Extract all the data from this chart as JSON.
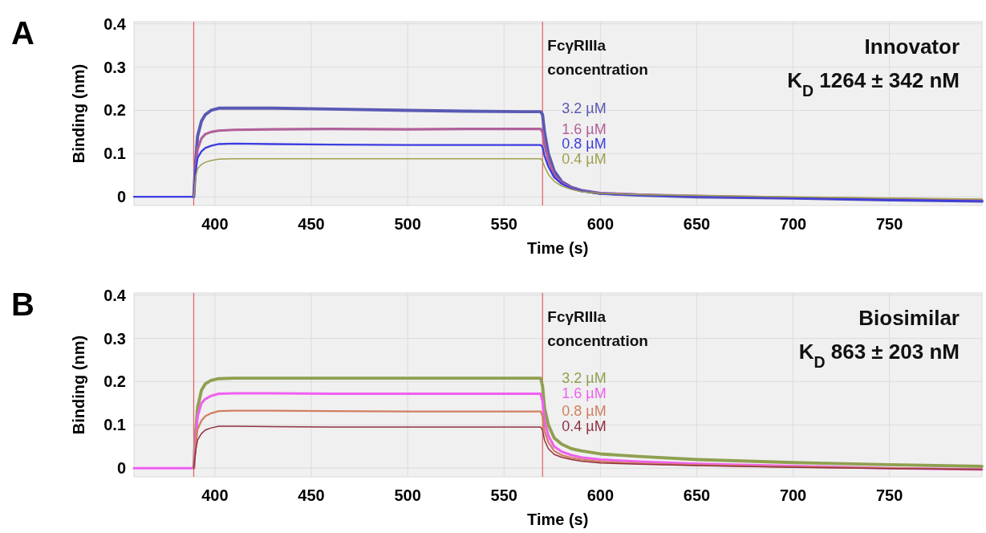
{
  "chart_data": [
    {
      "type": "line",
      "annotations": [
        "A"
      ],
      "title": "Innovator",
      "subtitle": "K$_{D}$ 1264 ± 342 nM",
      "legend_title": "FcγRIIIa concentration",
      "xlabel": "Time (s)",
      "ylabel": "Binding (nm)",
      "x": [
        358,
        370,
        385,
        389,
        390,
        391,
        393,
        395,
        398,
        402,
        410,
        430,
        460,
        500,
        530,
        560,
        569,
        570,
        571,
        573,
        576,
        580,
        585,
        590,
        600,
        620,
        650,
        700,
        750,
        798
      ],
      "series": [
        {
          "name": "3.2 µM",
          "color": "#5a5ab4",
          "values": [
            null,
            null,
            null,
            0,
            0.08,
            0.14,
            0.175,
            0.19,
            0.2,
            0.205,
            0.205,
            0.205,
            0.203,
            0.2,
            0.198,
            0.197,
            0.197,
            0.19,
            0.15,
            0.1,
            0.06,
            0.035,
            0.022,
            0.015,
            0.008,
            0.004,
            0.0,
            -0.003,
            -0.007,
            -0.01
          ]
        },
        {
          "name": "1.6 µM",
          "color": "#b0609a",
          "values": [
            null,
            null,
            null,
            0,
            0.07,
            0.11,
            0.135,
            0.145,
            0.15,
            0.153,
            0.155,
            0.156,
            0.157,
            0.156,
            0.157,
            0.157,
            0.157,
            0.15,
            0.12,
            0.085,
            0.05,
            0.032,
            0.02,
            0.014,
            0.008,
            0.005,
            0.002,
            -0.002,
            -0.005,
            -0.008
          ]
        },
        {
          "name": "0.8 µM",
          "color": "#3c3ce0",
          "values": [
            0,
            0,
            0,
            0,
            0.06,
            0.09,
            0.105,
            0.113,
            0.118,
            0.122,
            0.123,
            0.122,
            0.121,
            0.12,
            0.12,
            0.12,
            0.12,
            0.115,
            0.095,
            0.07,
            0.045,
            0.03,
            0.019,
            0.013,
            0.007,
            0.004,
            0.001,
            -0.003,
            -0.007,
            -0.01
          ]
        },
        {
          "name": "0.4 µM",
          "color": "#a0a050",
          "values": [
            null,
            null,
            null,
            0,
            0.045,
            0.065,
            0.075,
            0.08,
            0.084,
            0.087,
            0.088,
            0.088,
            0.088,
            0.088,
            0.088,
            0.088,
            0.088,
            0.083,
            0.07,
            0.052,
            0.036,
            0.025,
            0.017,
            0.012,
            0.008,
            0.005,
            0.003,
            0.0,
            -0.003,
            -0.005
          ]
        }
      ],
      "xlim": [
        358,
        798
      ],
      "xticks": [
        400,
        450,
        500,
        550,
        600,
        650,
        700,
        750
      ],
      "ylim": [
        -0.02,
        0.405
      ],
      "yticks": [
        0,
        0.1,
        0.2,
        0.3,
        0.4
      ],
      "grid": true,
      "ref_lines": [
        {
          "axis": "x",
          "value": 389,
          "color": "#e06060"
        },
        {
          "axis": "x",
          "value": 570,
          "color": "#e06060"
        }
      ]
    },
    {
      "type": "line",
      "annotations": [
        "B"
      ],
      "title": "Biosimilar",
      "subtitle": "K$_{D}$ 863 ± 203 nM",
      "legend_title": "FcγRIIIa concentration",
      "xlabel": "Time (s)",
      "ylabel": "Binding (nm)",
      "x": [
        358,
        370,
        385,
        389,
        390,
        391,
        393,
        395,
        398,
        402,
        410,
        430,
        460,
        500,
        530,
        560,
        569,
        570,
        571,
        573,
        576,
        580,
        585,
        590,
        600,
        620,
        650,
        700,
        750,
        798
      ],
      "series": [
        {
          "name": "3.2 µM",
          "color": "#8fa050",
          "values": [
            null,
            null,
            null,
            0,
            0.08,
            0.14,
            0.18,
            0.195,
            0.203,
            0.207,
            0.208,
            0.208,
            0.208,
            0.208,
            0.208,
            0.208,
            0.208,
            0.19,
            0.14,
            0.1,
            0.07,
            0.055,
            0.045,
            0.04,
            0.033,
            0.027,
            0.02,
            0.013,
            0.008,
            0.004
          ]
        },
        {
          "name": "1.6 µM",
          "color": "#f060f0",
          "values": [
            0,
            0,
            0,
            0,
            0.065,
            0.12,
            0.15,
            0.16,
            0.167,
            0.172,
            0.173,
            0.173,
            0.172,
            0.172,
            0.172,
            0.172,
            0.172,
            0.155,
            0.11,
            0.075,
            0.05,
            0.038,
            0.03,
            0.025,
            0.02,
            0.015,
            0.01,
            0.005,
            0.0,
            -0.003
          ]
        },
        {
          "name": "0.8 µM",
          "color": "#d08060",
          "values": [
            null,
            null,
            null,
            0,
            0.05,
            0.09,
            0.11,
            0.12,
            0.127,
            0.132,
            0.133,
            0.133,
            0.132,
            0.131,
            0.131,
            0.131,
            0.131,
            0.12,
            0.085,
            0.06,
            0.04,
            0.03,
            0.024,
            0.02,
            0.015,
            0.011,
            0.007,
            0.003,
            0.0,
            -0.003
          ]
        },
        {
          "name": "0.4 µM",
          "color": "#903040",
          "values": [
            null,
            null,
            null,
            0,
            0.04,
            0.065,
            0.08,
            0.088,
            0.093,
            0.097,
            0.097,
            0.096,
            0.095,
            0.095,
            0.095,
            0.095,
            0.095,
            0.088,
            0.065,
            0.045,
            0.032,
            0.025,
            0.02,
            0.016,
            0.012,
            0.009,
            0.006,
            0.002,
            -0.001,
            -0.003
          ]
        }
      ],
      "xlim": [
        358,
        798
      ],
      "xticks": [
        400,
        450,
        500,
        550,
        600,
        650,
        700,
        750
      ],
      "ylim": [
        -0.02,
        0.405
      ],
      "yticks": [
        0,
        0.1,
        0.2,
        0.3,
        0.4
      ],
      "grid": true,
      "ref_lines": [
        {
          "axis": "x",
          "value": 389,
          "color": "#e06060"
        },
        {
          "axis": "x",
          "value": 570,
          "color": "#e06060"
        }
      ]
    }
  ]
}
